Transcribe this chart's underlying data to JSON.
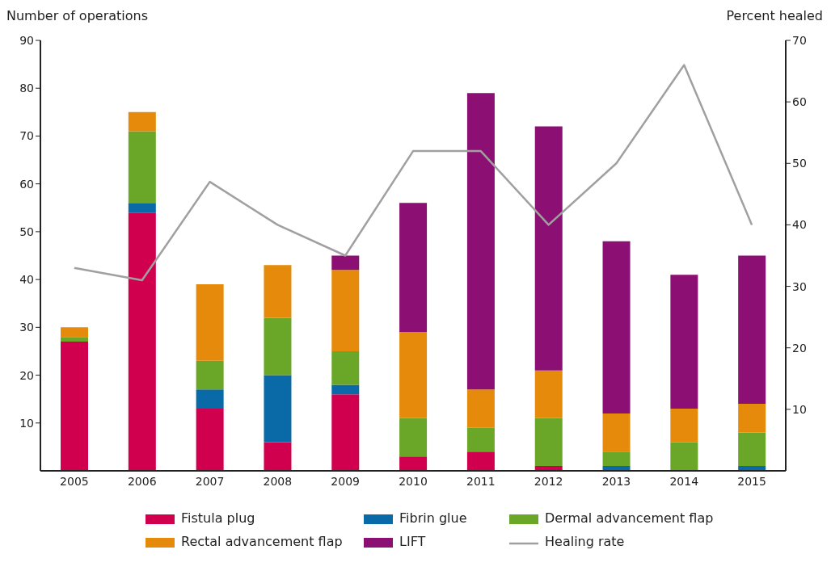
{
  "chart_data": {
    "type": "bar",
    "stacked": true,
    "ylabel": "Number of operations",
    "y2label": "Percent healed",
    "categories": [
      "2005",
      "2006",
      "2007",
      "2008",
      "2009",
      "2010",
      "2011",
      "2012",
      "2013",
      "2014",
      "2015"
    ],
    "series": [
      {
        "name": "Fistula plug",
        "color": "#d0004f",
        "values": [
          27,
          54,
          13,
          6,
          16,
          3,
          4,
          1,
          0,
          0,
          0
        ]
      },
      {
        "name": "Fibrin glue",
        "color": "#0a6aa8",
        "values": [
          0,
          2,
          4,
          14,
          2,
          0,
          0,
          0,
          1,
          0,
          1
        ]
      },
      {
        "name": "Dermal advancement flap",
        "color": "#6aa628",
        "values": [
          1,
          15,
          6,
          12,
          7,
          8,
          5,
          10,
          3,
          6,
          7
        ]
      },
      {
        "name": "Rectal advancement flap",
        "color": "#e58a0a",
        "values": [
          2,
          4,
          16,
          11,
          17,
          18,
          8,
          10,
          8,
          7,
          6
        ]
      },
      {
        "name": "LIFT",
        "color": "#8c0f73",
        "values": [
          0,
          0,
          0,
          0,
          3,
          27,
          62,
          51,
          36,
          28,
          31
        ]
      },
      {
        "name": "Healing rate",
        "type": "line",
        "axis": "y2",
        "color": "#a0a0a0",
        "marker": "none",
        "values": [
          33,
          31,
          47,
          40,
          35,
          52,
          52,
          40,
          50,
          66,
          40
        ]
      }
    ],
    "ylim": [
      0,
      90
    ],
    "yticks": [
      10,
      20,
      30,
      40,
      50,
      60,
      70,
      80,
      90
    ],
    "y2lim": [
      0,
      70
    ],
    "y2ticks": [
      10,
      20,
      30,
      40,
      50,
      60,
      70
    ],
    "legend": "bottom"
  }
}
